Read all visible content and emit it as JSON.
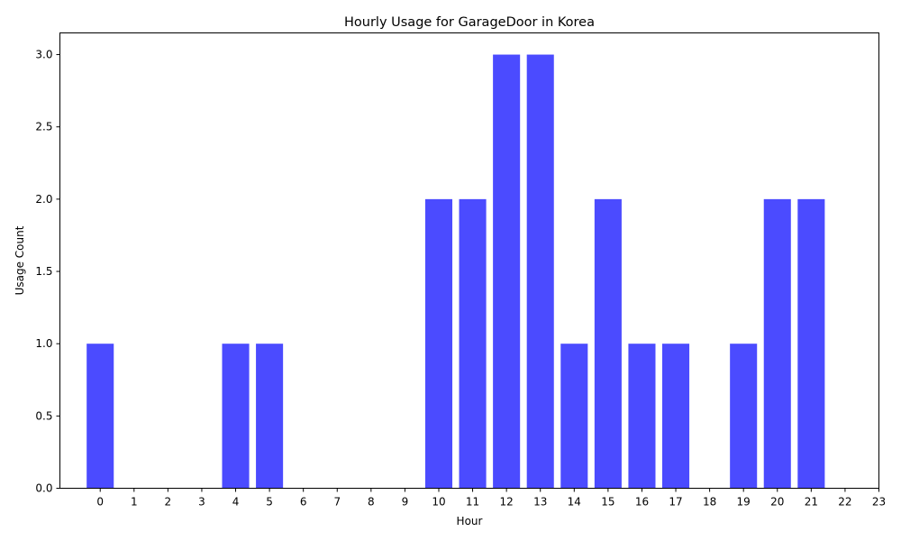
{
  "chart_data": {
    "type": "bar",
    "title": "Hourly Usage for GarageDoor in Korea",
    "xlabel": "Hour",
    "ylabel": "Usage Count",
    "x": [
      0,
      1,
      2,
      3,
      4,
      5,
      6,
      7,
      8,
      9,
      10,
      11,
      12,
      13,
      14,
      15,
      16,
      17,
      18,
      19,
      20,
      21,
      22,
      23
    ],
    "values": [
      1,
      0,
      0,
      0,
      1,
      1,
      0,
      0,
      0,
      0,
      2,
      2,
      3,
      3,
      1,
      2,
      1,
      1,
      0,
      1,
      2,
      2,
      0,
      0
    ],
    "ylim": [
      0,
      3.15
    ],
    "yticks": [
      "0.0",
      "0.5",
      "1.0",
      "1.5",
      "2.0",
      "2.5",
      "3.0"
    ],
    "xticks": [
      "0",
      "1",
      "2",
      "3",
      "4",
      "5",
      "6",
      "7",
      "8",
      "9",
      "10",
      "11",
      "12",
      "13",
      "14",
      "15",
      "16",
      "17",
      "18",
      "19",
      "20",
      "21",
      "22",
      "23"
    ],
    "bar_color": "#4b4bff",
    "grid": false,
    "legend": "none"
  }
}
